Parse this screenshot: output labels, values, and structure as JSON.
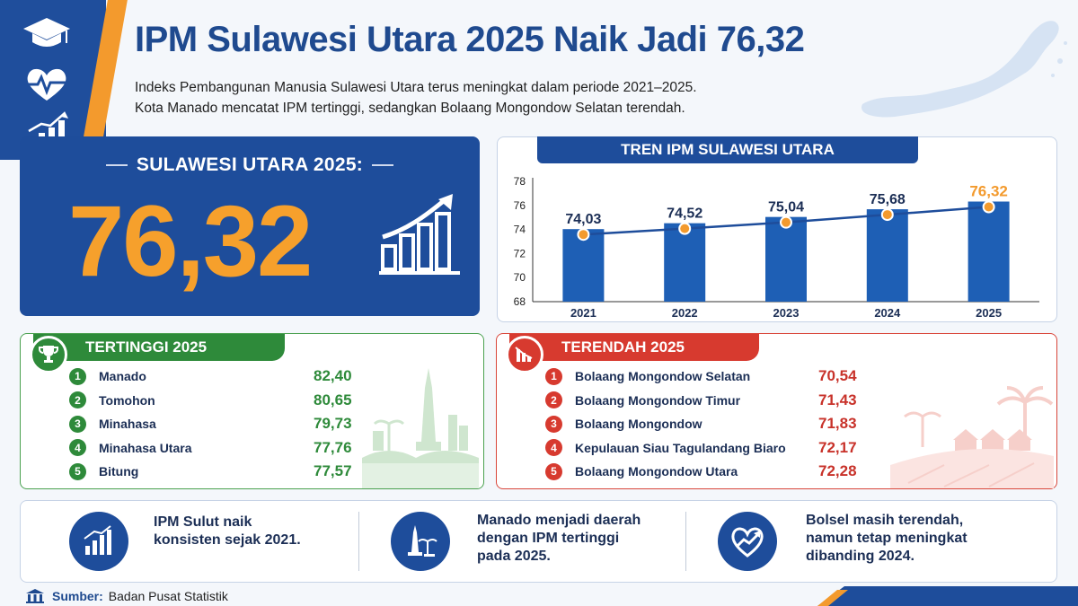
{
  "header": {
    "title": "IPM Sulawesi Utara 2025 Naik Jadi 76,32",
    "subtitle_line1": "Indeks Pembangunan Manusia Sulawesi Utara terus meningkat dalam periode 2021–2025.",
    "subtitle_line2": "Kota Manado mencatat IPM tertinggi, sedangkan Bolaang Mongondow Selatan terendah."
  },
  "sidebar": {
    "icons": [
      "graduation-cap-icon",
      "heart-pulse-icon",
      "growth-chart-icon"
    ]
  },
  "hero": {
    "label": "SULAWESI UTARA 2025:",
    "value": "76,32"
  },
  "trend": {
    "title": "TREN IPM SULAWESI UTARA",
    "colors": {
      "bar": "#1e5fb5",
      "line": "#1e4d9b",
      "point": "#f39a2d",
      "highlight": "#f39a2d"
    }
  },
  "chart_data": {
    "type": "bar",
    "title": "TREN IPM SULAWESI UTARA",
    "categories": [
      "2021",
      "2022",
      "2023",
      "2024",
      "2025"
    ],
    "values": [
      74.03,
      74.52,
      75.04,
      75.68,
      76.32
    ],
    "value_labels": [
      "74,03",
      "74,52",
      "75,04",
      "75,68",
      "76,32"
    ],
    "ylim": [
      68,
      78
    ],
    "yticks": [
      "68",
      "70",
      "72",
      "74",
      "76",
      "78"
    ],
    "overlay": "line",
    "grid": false,
    "xlabel": "",
    "ylabel": ""
  },
  "top": {
    "title": "TERTINGGI 2025",
    "items": [
      {
        "rank": "1",
        "name": "Manado",
        "value": "82,40"
      },
      {
        "rank": "2",
        "name": "Tomohon",
        "value": "80,65"
      },
      {
        "rank": "3",
        "name": "Minahasa",
        "value": "79,73"
      },
      {
        "rank": "4",
        "name": "Minahasa Utara",
        "value": "77,76"
      },
      {
        "rank": "5",
        "name": "Bitung",
        "value": "77,57"
      }
    ]
  },
  "bottom": {
    "title": "TERENDAH 2025",
    "items": [
      {
        "rank": "1",
        "name": "Bolaang Mongondow Selatan",
        "value": "70,54"
      },
      {
        "rank": "2",
        "name": "Bolaang Mongondow Timur",
        "value": "71,43"
      },
      {
        "rank": "3",
        "name": "Bolaang Mongondow",
        "value": "71,83"
      },
      {
        "rank": "4",
        "name": "Kepulauan Siau Tagulandang Biaro",
        "value": "72,17"
      },
      {
        "rank": "5",
        "name": "Bolaang Mongondow Utara",
        "value": "72,28"
      }
    ]
  },
  "insights": [
    {
      "icon": "growth-chart-icon",
      "text": "IPM Sulut naik\nkonsisten sejak 2021."
    },
    {
      "icon": "monument-icon",
      "text": "Manado menjadi daerah\ndengan IPM tertinggi\npada 2025."
    },
    {
      "icon": "heart-trend-icon",
      "text": "Bolsel masih terendah,\nnamun tetap meningkat\ndibanding 2024."
    }
  ],
  "source": {
    "label": "Sumber:",
    "value": "Badan Pusat Statistik"
  },
  "colors": {
    "primary": "#1e4d9b",
    "accent": "#f39a2d",
    "green": "#2e8a3a",
    "red": "#d73a2f"
  }
}
